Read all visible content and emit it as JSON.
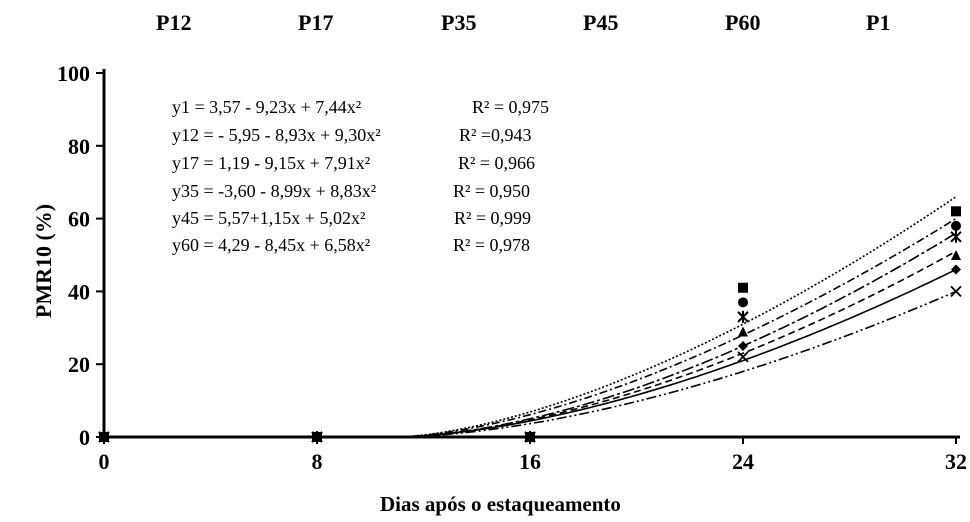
{
  "top_labels": [
    "P12",
    "P17",
    "P35",
    "P45",
    "P60",
    "P1"
  ],
  "equations": [
    {
      "text": "y1 = 3,57 - 9,23x + 7,44x²",
      "r2": "R² = 0,975"
    },
    {
      "text": "y12 = - 5,95 - 8,93x + 9,30x²",
      "r2": "R² =0,943"
    },
    {
      "text": "y17 = 1,19 - 9,15x + 7,91x²",
      "r2": "R² = 0,966"
    },
    {
      "text": "y35 = -3,60 - 8,99x + 8,83x²",
      "r2": "R² = 0,950"
    },
    {
      "text": "y45 = 5,57+1,15x + 5,02x²",
      "r2": "R² = 0,999"
    },
    {
      "text": "y60 = 4,29 - 8,45x + 6,58x²",
      "r2": "R² = 0,978"
    }
  ],
  "chart_data": {
    "type": "scatter",
    "xlabel": "Dias após o estaqueamento",
    "ylabel": "PMR10 (%)",
    "xlim": [
      0,
      32
    ],
    "ylim": [
      0,
      100
    ],
    "xticks": [
      0,
      8,
      16,
      24,
      32
    ],
    "yticks": [
      0,
      20,
      40,
      60,
      80,
      100
    ],
    "x": [
      0,
      8,
      16,
      24,
      32
    ],
    "series": [
      {
        "name": "P12",
        "marker": "x",
        "values": [
          0,
          0,
          0,
          22,
          40
        ]
      },
      {
        "name": "P17",
        "marker": "diamond",
        "values": [
          0,
          0,
          0,
          25,
          46
        ]
      },
      {
        "name": "P35",
        "marker": "triangle",
        "values": [
          0,
          0,
          0,
          29,
          50
        ]
      },
      {
        "name": "P45",
        "marker": "asterisk",
        "values": [
          0,
          0,
          0,
          33,
          55
        ]
      },
      {
        "name": "P60",
        "marker": "circle",
        "values": [
          0,
          0,
          0,
          37,
          58
        ]
      },
      {
        "name": "P1",
        "marker": "square",
        "values": [
          0,
          0,
          0,
          41,
          62
        ]
      }
    ],
    "fits": [
      {
        "style": "dash-dot-dot",
        "values_at_x": [
          0,
          0,
          0,
          18,
          40
        ]
      },
      {
        "style": "solid",
        "values_at_x": [
          0,
          0,
          0,
          21,
          46
        ]
      },
      {
        "style": "dashed",
        "values_at_x": [
          0,
          0,
          0,
          23,
          51
        ]
      },
      {
        "style": "dash-dot-long",
        "values_at_x": [
          0,
          0,
          0,
          25,
          56
        ]
      },
      {
        "style": "dash-dot",
        "values_at_x": [
          0,
          0,
          0,
          28,
          60
        ]
      },
      {
        "style": "dotted",
        "values_at_x": [
          0,
          0,
          0,
          31,
          66
        ]
      }
    ]
  }
}
